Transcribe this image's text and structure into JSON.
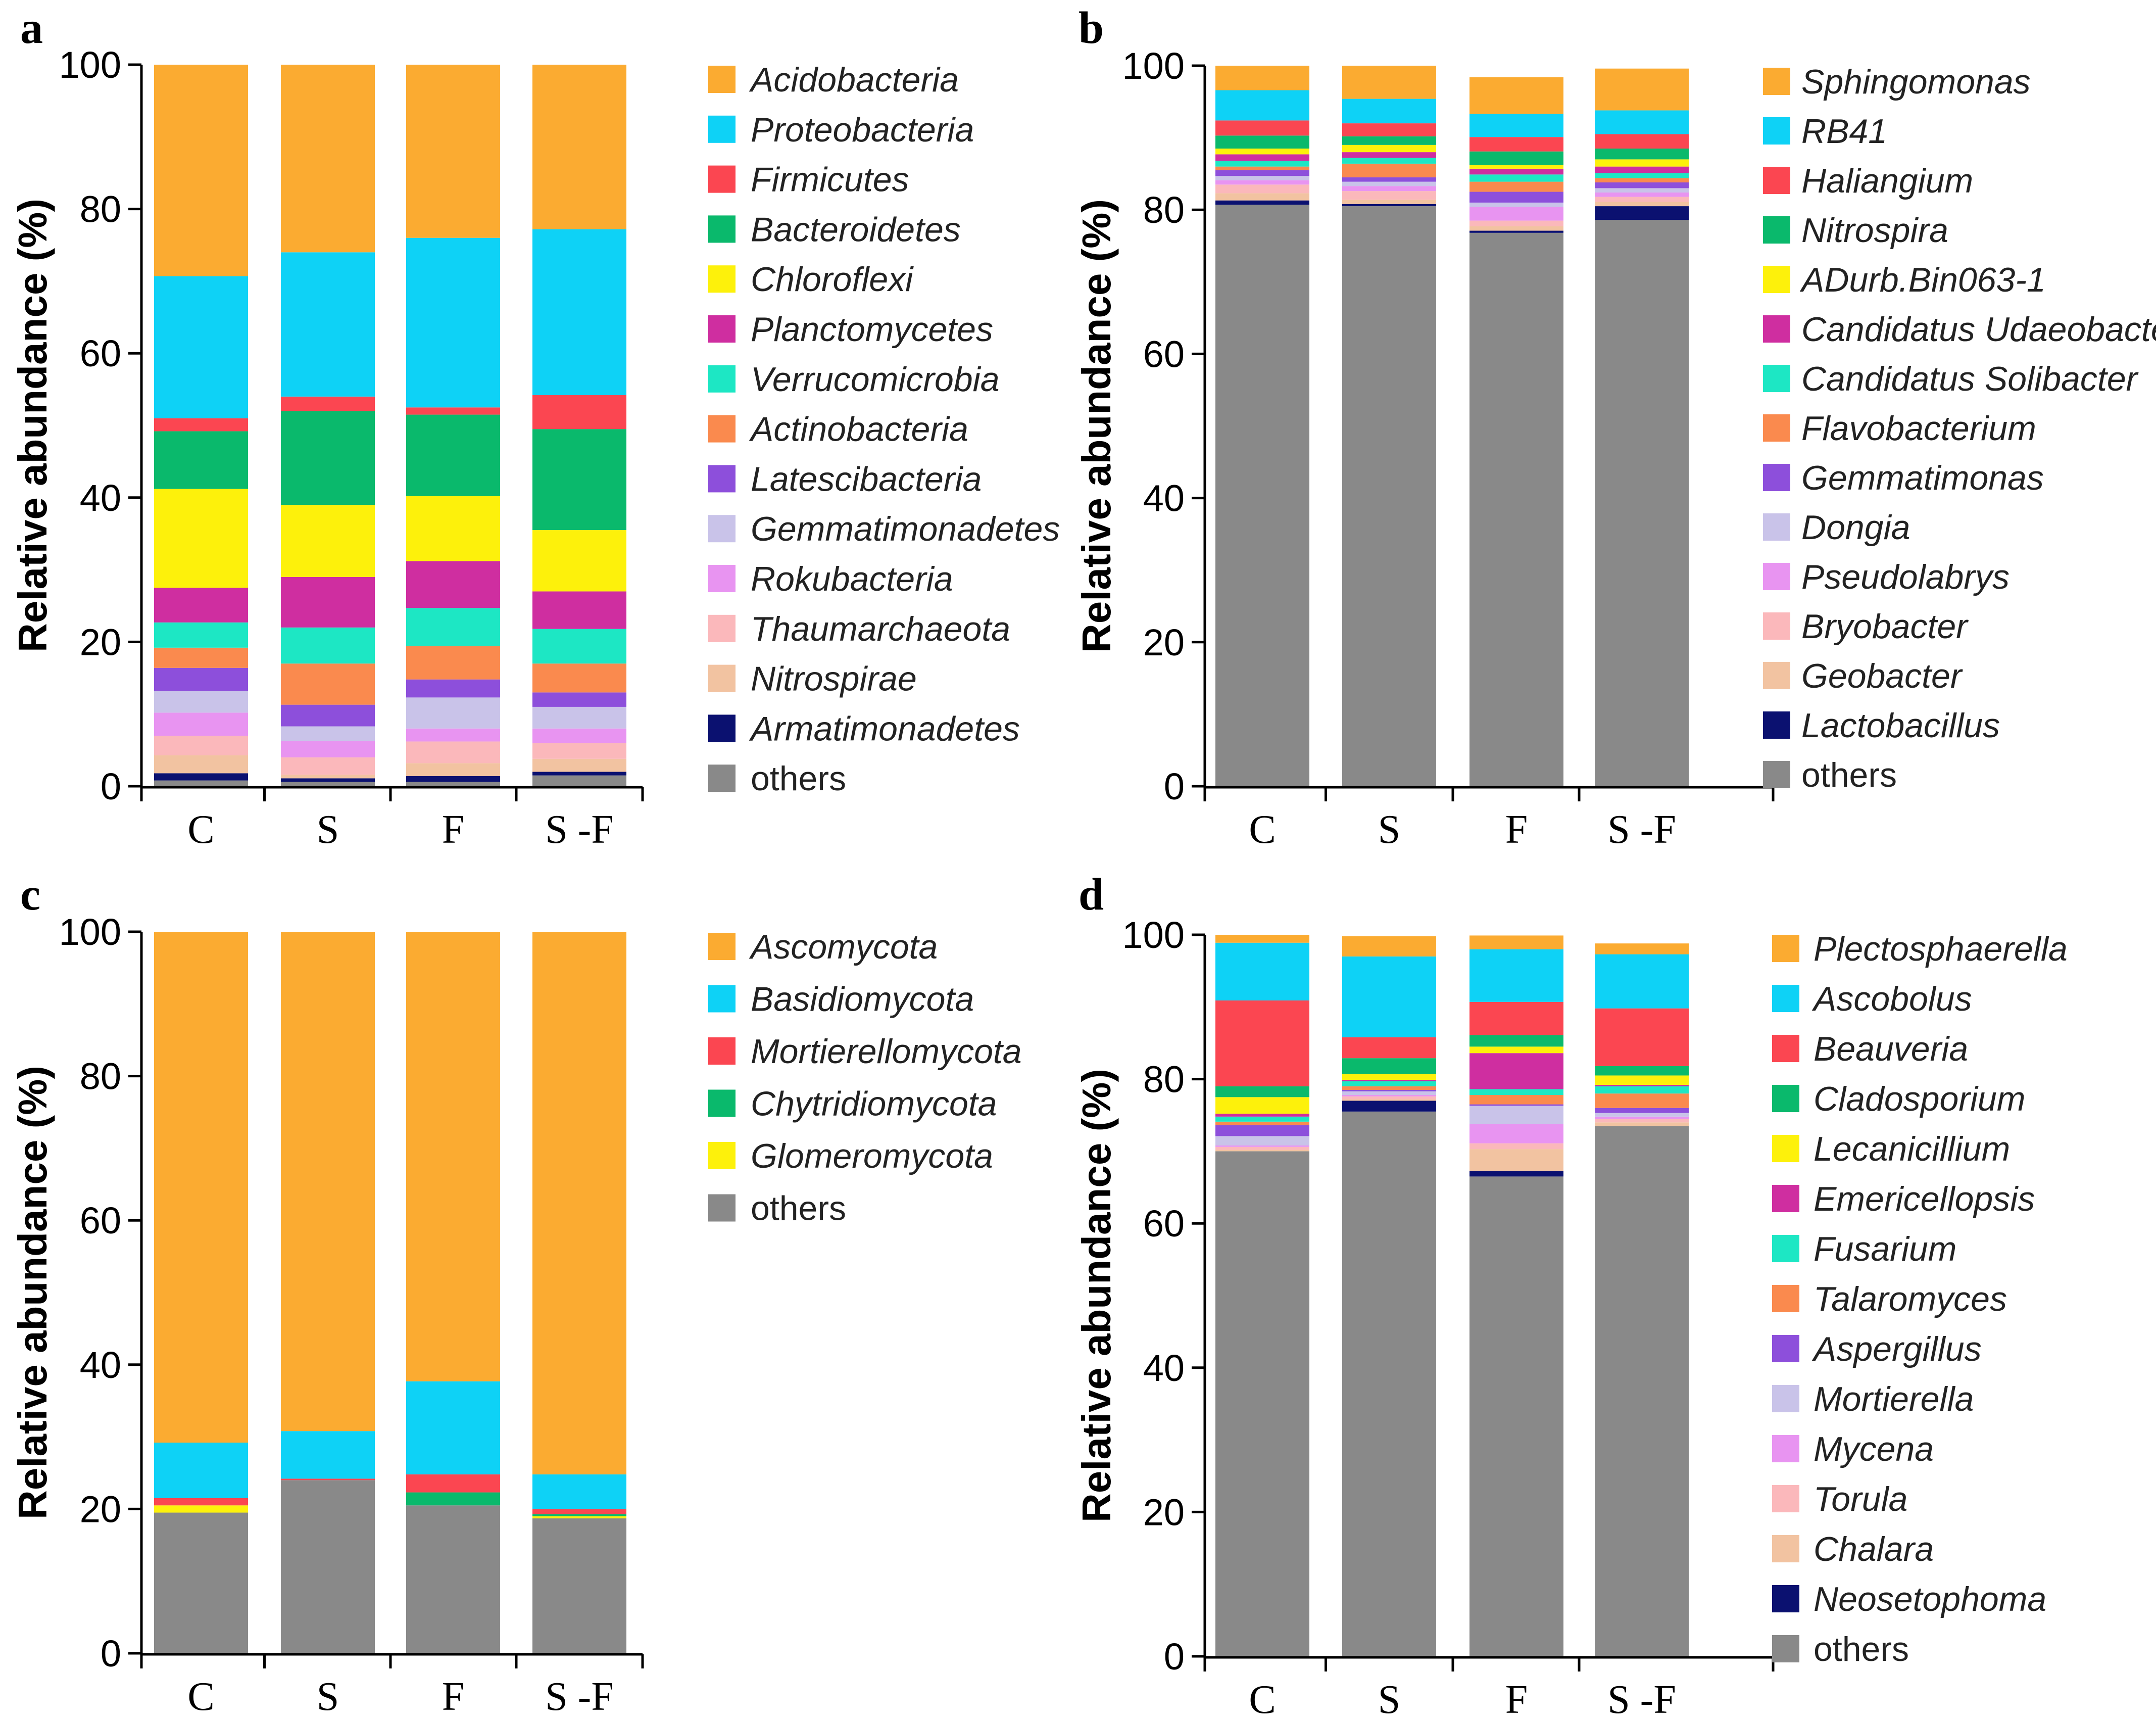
{
  "chart_data": [
    {
      "id": "a",
      "panel_label": "a",
      "type": "bar",
      "stacked": true,
      "ylabel": "Relative abundance (%)",
      "ylim": [
        0,
        100
      ],
      "yticks": [
        "0",
        "20",
        "40",
        "60",
        "80",
        "100"
      ],
      "categories": [
        "C",
        "S",
        "F",
        "S-F"
      ],
      "category_labels": [
        "C",
        "S",
        "F",
        "S -F"
      ],
      "series": [
        {
          "name": "others",
          "italic": false,
          "color": "#898989",
          "values": [
            0.8,
            0.6,
            0.6,
            1.5
          ]
        },
        {
          "name": "Armatimonadetes",
          "italic": true,
          "color": "#0b1170",
          "values": [
            1.0,
            0.5,
            0.8,
            0.5
          ]
        },
        {
          "name": "Nitrospirae",
          "italic": true,
          "color": "#f2c3a1",
          "values": [
            2.5,
            0.5,
            1.8,
            1.8
          ]
        },
        {
          "name": "Thaumarchaeota",
          "italic": true,
          "color": "#fbb8bb",
          "values": [
            2.7,
            2.4,
            3.0,
            2.2
          ]
        },
        {
          "name": "Rokubacteria",
          "italic": true,
          "color": "#e894f1",
          "values": [
            3.2,
            2.3,
            1.8,
            2.0
          ]
        },
        {
          "name": "Gemmatimonadetes",
          "italic": true,
          "color": "#c9c3e9",
          "values": [
            3.0,
            2.0,
            4.3,
            3.0
          ]
        },
        {
          "name": "Latescibacteria",
          "italic": true,
          "color": "#8d4fdb",
          "values": [
            3.2,
            3.0,
            2.5,
            2.0
          ]
        },
        {
          "name": "Actinobacteria",
          "italic": true,
          "color": "#fa8a4e",
          "values": [
            2.8,
            5.7,
            4.6,
            4.0
          ]
        },
        {
          "name": "Verrucomicrobia",
          "italic": true,
          "color": "#1de7c4",
          "values": [
            3.5,
            5.0,
            5.3,
            4.8
          ]
        },
        {
          "name": "Planctomycetes",
          "italic": true,
          "color": "#cf2ea0",
          "values": [
            4.8,
            7.0,
            6.5,
            5.2
          ]
        },
        {
          "name": "Chloroflexi",
          "italic": true,
          "color": "#fdf10b",
          "values": [
            13.7,
            10.0,
            9.0,
            8.5
          ]
        },
        {
          "name": "Bacteroidetes",
          "italic": true,
          "color": "#0ab96c",
          "values": [
            8.0,
            13.0,
            11.3,
            14.0
          ]
        },
        {
          "name": "Firmicutes",
          "italic": true,
          "color": "#fb4651",
          "values": [
            1.8,
            2.0,
            1.0,
            4.7
          ]
        },
        {
          "name": "Proteobacteria",
          "italic": true,
          "color": "#0ed2f6",
          "values": [
            19.7,
            20.0,
            23.5,
            23.0
          ]
        },
        {
          "name": "Acidobacteria",
          "italic": true,
          "color": "#fbab31",
          "values": [
            29.3,
            26.0,
            24.0,
            22.8
          ]
        }
      ]
    },
    {
      "id": "b",
      "panel_label": "b",
      "type": "bar",
      "stacked": true,
      "ylabel": "Relative abundance (%)",
      "ylim": [
        0,
        100
      ],
      "yticks": [
        "0",
        "20",
        "40",
        "60",
        "80",
        "100"
      ],
      "categories": [
        "C",
        "S",
        "F",
        "S-F"
      ],
      "category_labels": [
        "C",
        "S",
        "F",
        "S -F"
      ],
      "series": [
        {
          "name": "others",
          "italic": false,
          "color": "#898989",
          "values": [
            80.7,
            80.5,
            76.8,
            78.6
          ]
        },
        {
          "name": "Lactobacillus",
          "italic": true,
          "color": "#0b1170",
          "values": [
            0.6,
            0.3,
            0.3,
            1.9
          ]
        },
        {
          "name": "Geobacter",
          "italic": true,
          "color": "#f2c3a1",
          "values": [
            1.0,
            0.6,
            0.6,
            0.6
          ]
        },
        {
          "name": "Bryobacter",
          "italic": true,
          "color": "#fbb8bb",
          "values": [
            1.2,
            1.2,
            0.8,
            0.7
          ]
        },
        {
          "name": "Pseudolabrys",
          "italic": true,
          "color": "#e894f1",
          "values": [
            0.6,
            0.7,
            1.9,
            0.6
          ]
        },
        {
          "name": "Dongia",
          "italic": true,
          "color": "#c9c3e9",
          "values": [
            0.6,
            0.6,
            0.6,
            0.6
          ]
        },
        {
          "name": "Gemmatimonas",
          "italic": true,
          "color": "#8d4fdb",
          "values": [
            0.8,
            0.6,
            1.5,
            0.8
          ]
        },
        {
          "name": "Flavobacterium",
          "italic": true,
          "color": "#fa8a4e",
          "values": [
            0.5,
            1.9,
            1.4,
            0.6
          ]
        },
        {
          "name": "Candidatus Solibacter",
          "italic": true,
          "color": "#1de7c4",
          "values": [
            0.8,
            0.8,
            1.0,
            0.7
          ]
        },
        {
          "name": "Candidatus Udaeobacter",
          "italic": true,
          "color": "#cf2ea0",
          "values": [
            0.9,
            0.8,
            0.8,
            0.9
          ]
        },
        {
          "name": "ADurb.Bin063-1",
          "italic": true,
          "color": "#fdf10b",
          "values": [
            0.8,
            1.0,
            0.5,
            1.0
          ]
        },
        {
          "name": "Nitrospira",
          "italic": true,
          "color": "#0ab96c",
          "values": [
            1.8,
            1.2,
            1.9,
            1.5
          ]
        },
        {
          "name": "Haliangium",
          "italic": true,
          "color": "#fb4651",
          "values": [
            2.1,
            1.8,
            2.0,
            2.0
          ]
        },
        {
          "name": "RB41",
          "italic": true,
          "color": "#0ed2f6",
          "values": [
            4.2,
            3.4,
            3.2,
            3.3
          ]
        },
        {
          "name": "Sphingomonas",
          "italic": true,
          "color": "#fbab31",
          "values": [
            3.4,
            4.6,
            5.1,
            5.8
          ]
        }
      ]
    },
    {
      "id": "c",
      "panel_label": "c",
      "type": "bar",
      "stacked": true,
      "ylabel": "Relative abundance (%)",
      "ylim": [
        0,
        100
      ],
      "yticks": [
        "0",
        "20",
        "40",
        "60",
        "80",
        "100"
      ],
      "categories": [
        "C",
        "S",
        "F",
        "S-F"
      ],
      "category_labels": [
        "C",
        "S",
        "F",
        "S -F"
      ],
      "series": [
        {
          "name": "others",
          "italic": false,
          "color": "#898989",
          "values": [
            19.5,
            24.0,
            20.5,
            18.7
          ]
        },
        {
          "name": "Glomeromycota",
          "italic": true,
          "color": "#fdf10b",
          "values": [
            1.0,
            0.0,
            0.0,
            0.3
          ]
        },
        {
          "name": "Chytridiomycota",
          "italic": true,
          "color": "#0ab96c",
          "values": [
            0.0,
            0.0,
            1.8,
            0.3
          ]
        },
        {
          "name": "Mortierellomycota",
          "italic": true,
          "color": "#fb4651",
          "values": [
            1.0,
            0.2,
            2.5,
            0.7
          ]
        },
        {
          "name": "Basidiomycota",
          "italic": true,
          "color": "#0ed2f6",
          "values": [
            7.7,
            6.6,
            12.9,
            4.8
          ]
        },
        {
          "name": "Ascomycota",
          "italic": true,
          "color": "#fbab31",
          "values": [
            70.8,
            69.2,
            62.3,
            75.2
          ]
        }
      ]
    },
    {
      "id": "d",
      "panel_label": "d",
      "type": "bar",
      "stacked": true,
      "ylabel": "Relative abundance (%)",
      "ylim": [
        0,
        100
      ],
      "yticks": [
        "0",
        "20",
        "40",
        "60",
        "80",
        "100"
      ],
      "categories": [
        "C",
        "S",
        "F",
        "S-F"
      ],
      "category_labels": [
        "C",
        "S",
        "F",
        "S -F"
      ],
      "series": [
        {
          "name": "others",
          "italic": false,
          "color": "#898989",
          "values": [
            70.0,
            75.5,
            66.5,
            73.5
          ]
        },
        {
          "name": "Neosetophoma",
          "italic": true,
          "color": "#0b1170",
          "values": [
            0.0,
            1.5,
            0.8,
            0.0
          ]
        },
        {
          "name": "Chalara",
          "italic": true,
          "color": "#f2c3a1",
          "values": [
            0.2,
            0.2,
            3.0,
            0.5
          ]
        },
        {
          "name": "Torula",
          "italic": true,
          "color": "#fbb8bb",
          "values": [
            0.4,
            0.4,
            0.8,
            0.5
          ]
        },
        {
          "name": "Mycena",
          "italic": true,
          "color": "#e894f1",
          "values": [
            0.2,
            0.2,
            2.7,
            0.3
          ]
        },
        {
          "name": "Mortierella",
          "italic": true,
          "color": "#c9c3e9",
          "values": [
            1.3,
            0.5,
            2.5,
            0.5
          ]
        },
        {
          "name": "Aspergillus",
          "italic": true,
          "color": "#8d4fdb",
          "values": [
            1.5,
            0.2,
            0.2,
            0.7
          ]
        },
        {
          "name": "Talaromyces",
          "italic": true,
          "color": "#fa8a4e",
          "values": [
            0.5,
            0.5,
            1.3,
            2.0
          ]
        },
        {
          "name": "Fusarium",
          "italic": true,
          "color": "#1de7c4",
          "values": [
            0.7,
            0.7,
            0.8,
            1.0
          ]
        },
        {
          "name": "Emericellopsis",
          "italic": true,
          "color": "#cf2ea0",
          "values": [
            0.4,
            0.2,
            5.0,
            0.2
          ]
        },
        {
          "name": "Lecanicillium",
          "italic": true,
          "color": "#fdf10b",
          "values": [
            2.3,
            0.8,
            0.9,
            1.3
          ]
        },
        {
          "name": "Cladosporium",
          "italic": true,
          "color": "#0ab96c",
          "values": [
            1.5,
            2.2,
            1.6,
            1.3
          ]
        },
        {
          "name": "Beauveria",
          "italic": true,
          "color": "#fb4651",
          "values": [
            11.9,
            2.9,
            4.6,
            8.0
          ]
        },
        {
          "name": "Ascobolus",
          "italic": true,
          "color": "#0ed2f6",
          "values": [
            8.0,
            11.2,
            7.3,
            7.5
          ]
        },
        {
          "name": "Plectosphaerella",
          "italic": true,
          "color": "#fbab31",
          "values": [
            1.1,
            2.8,
            1.9,
            1.5
          ]
        }
      ]
    }
  ]
}
